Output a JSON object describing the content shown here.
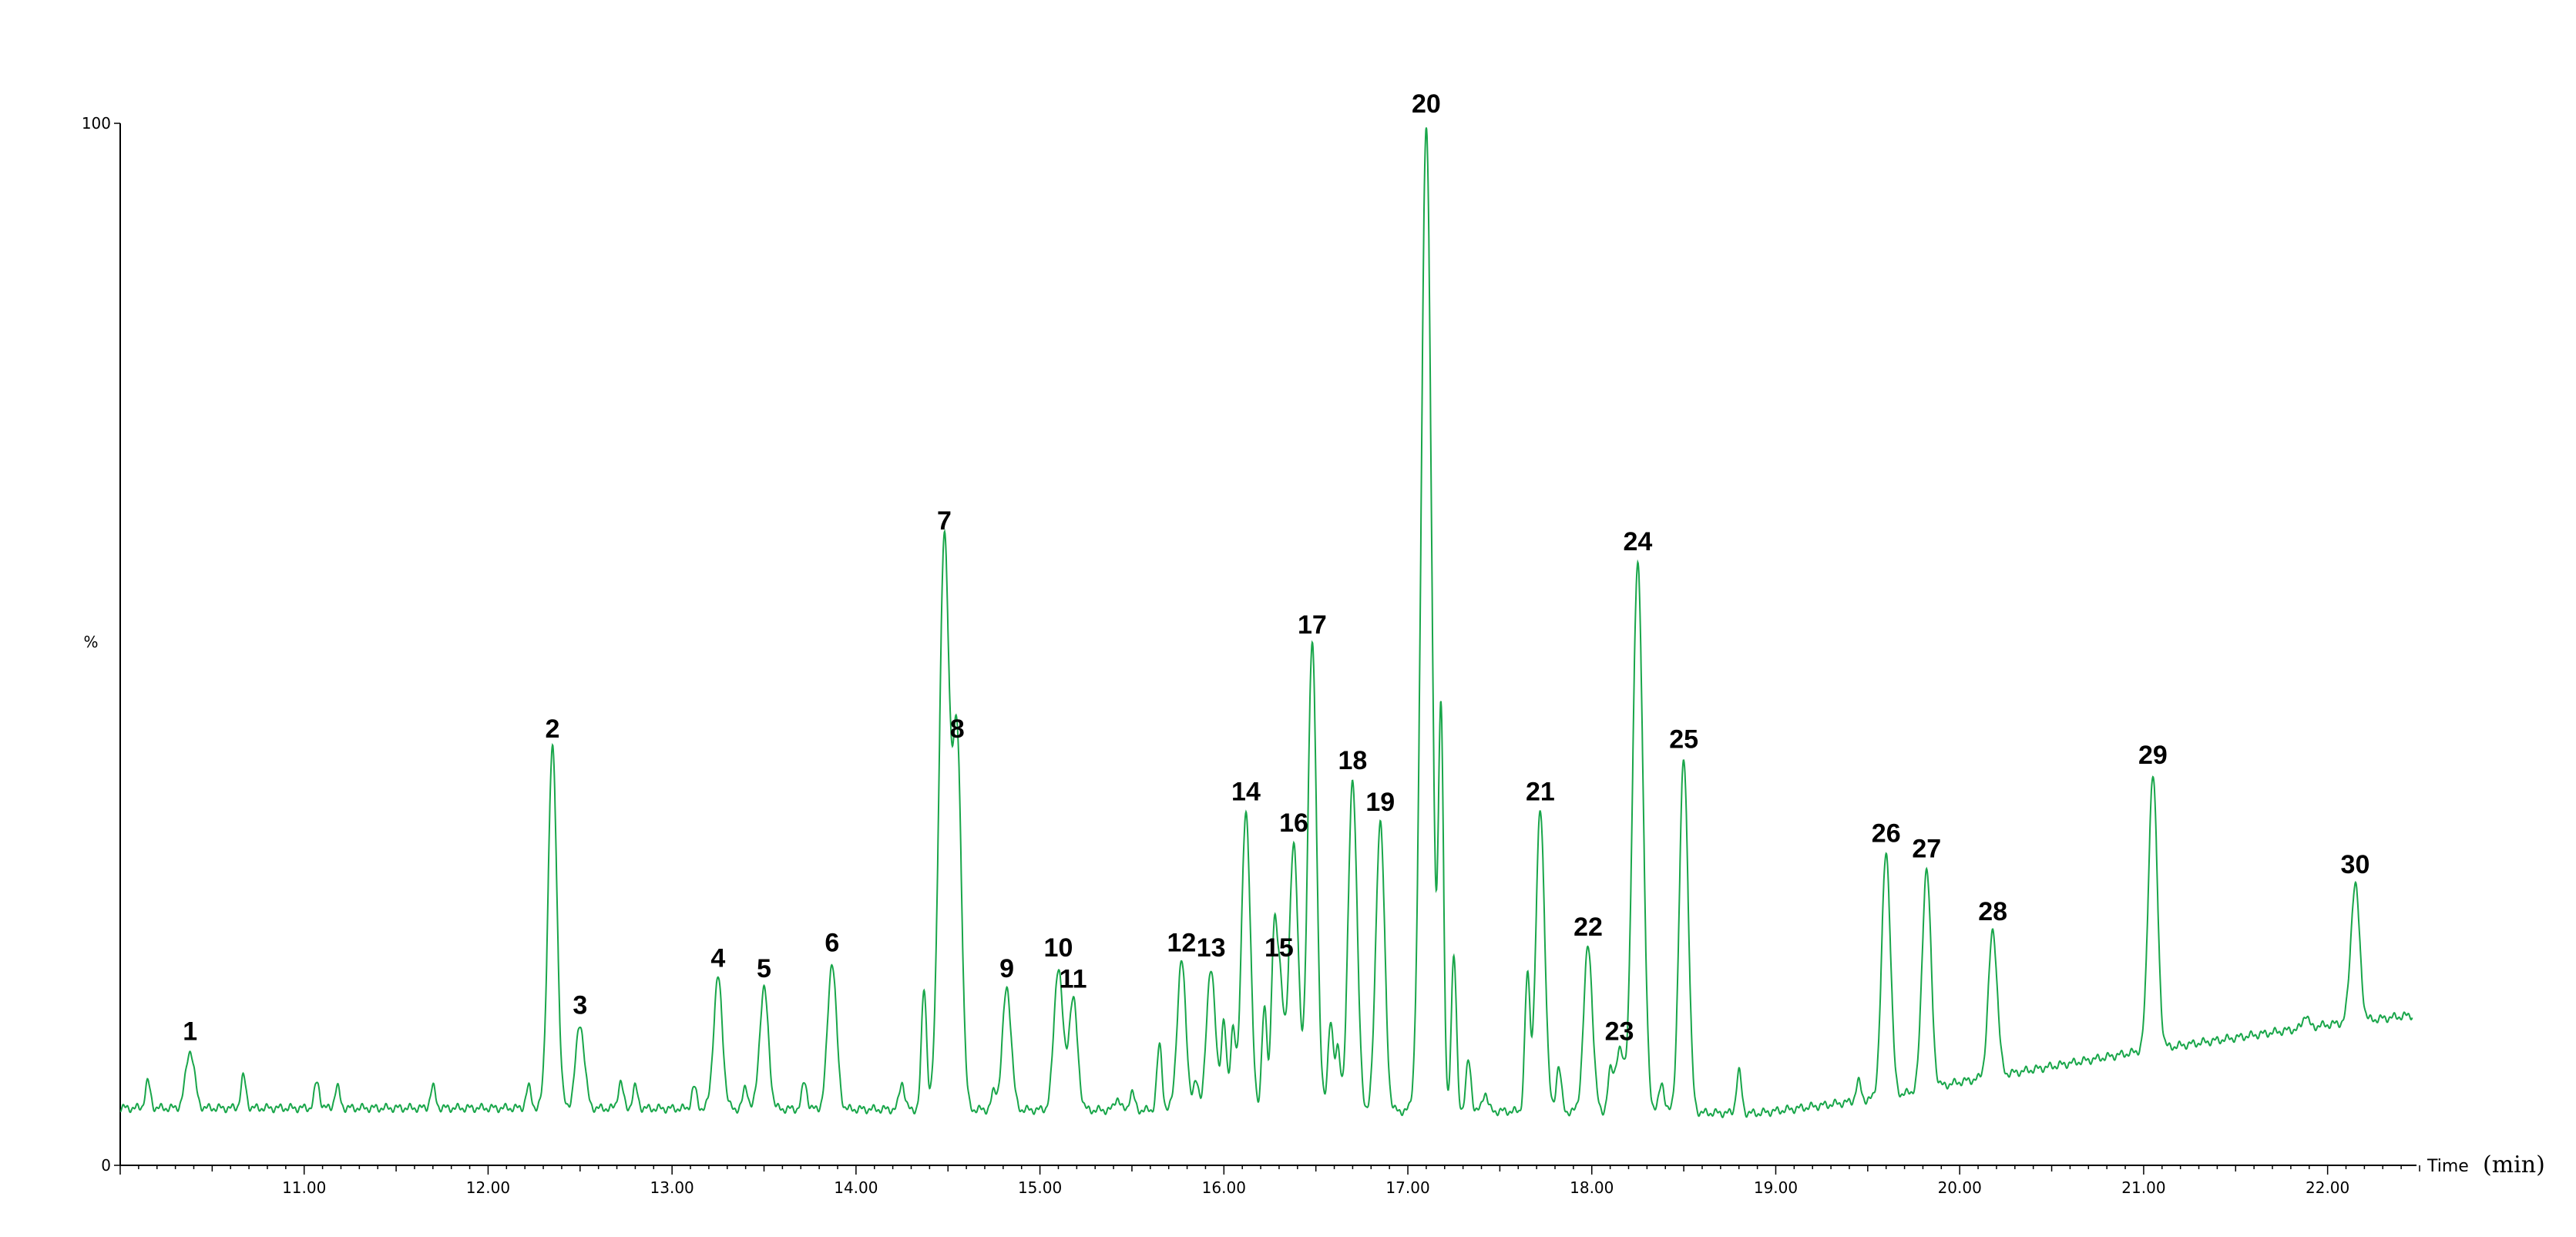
{
  "chart_data": {
    "type": "line",
    "xlabel": "Time",
    "xlabel_unit": "(min)",
    "ylabel": "%",
    "xlim": [
      10.0,
      22.5
    ],
    "ylim": [
      0,
      100
    ],
    "x_ticks": [
      11.0,
      12.0,
      13.0,
      14.0,
      15.0,
      16.0,
      17.0,
      18.0,
      19.0,
      20.0,
      21.0,
      22.0
    ],
    "x_tick_labels": [
      "11.00",
      "12.00",
      "13.00",
      "14.00",
      "15.00",
      "16.00",
      "17.00",
      "18.00",
      "19.00",
      "20.00",
      "21.00",
      "22.00"
    ],
    "y_ticks": [
      0,
      100
    ],
    "y_tick_labels": [
      "0",
      "100"
    ],
    "grid": false,
    "line_color": "#19a64a",
    "baseline": [
      [
        10.0,
        5.5
      ],
      [
        12.2,
        5.5
      ],
      [
        15.5,
        5.3
      ],
      [
        17.5,
        5.2
      ],
      [
        18.9,
        5.0
      ],
      [
        19.6,
        6.5
      ],
      [
        20.0,
        8.0
      ],
      [
        21.0,
        11.0
      ],
      [
        22.0,
        13.5
      ],
      [
        22.5,
        14.5
      ]
    ],
    "peaks": [
      {
        "label": "1",
        "x": 10.38,
        "y": 11.0
      },
      {
        "label": "2",
        "x": 12.35,
        "y": 40.0
      },
      {
        "label": "3",
        "x": 12.5,
        "y": 13.5
      },
      {
        "label": "4",
        "x": 13.25,
        "y": 18.0
      },
      {
        "label": "5",
        "x": 13.5,
        "y": 17.0
      },
      {
        "label": "6",
        "x": 13.87,
        "y": 19.5
      },
      {
        "label": "7",
        "x": 14.48,
        "y": 60.0
      },
      {
        "label": "8",
        "x": 14.55,
        "y": 40.0
      },
      {
        "label": "9",
        "x": 14.82,
        "y": 17.0
      },
      {
        "label": "10",
        "x": 15.1,
        "y": 19.0
      },
      {
        "label": "11",
        "x": 15.18,
        "y": 16.0
      },
      {
        "label": "12",
        "x": 15.77,
        "y": 19.5
      },
      {
        "label": "13",
        "x": 15.93,
        "y": 19.0
      },
      {
        "label": "14",
        "x": 16.12,
        "y": 34.0
      },
      {
        "label": "15",
        "x": 16.3,
        "y": 19.0
      },
      {
        "label": "16",
        "x": 16.38,
        "y": 31.0
      },
      {
        "label": "17",
        "x": 16.48,
        "y": 50.0
      },
      {
        "label": "18",
        "x": 16.7,
        "y": 37.0
      },
      {
        "label": "19",
        "x": 16.85,
        "y": 33.0
      },
      {
        "label": "20",
        "x": 17.1,
        "y": 100.0
      },
      {
        "label": "21",
        "x": 17.72,
        "y": 34.0
      },
      {
        "label": "22",
        "x": 17.98,
        "y": 21.0
      },
      {
        "label": "23",
        "x": 18.15,
        "y": 11.0
      },
      {
        "label": "24",
        "x": 18.25,
        "y": 58.0
      },
      {
        "label": "25",
        "x": 18.5,
        "y": 39.0
      },
      {
        "label": "26",
        "x": 19.6,
        "y": 30.0
      },
      {
        "label": "27",
        "x": 19.82,
        "y": 28.5
      },
      {
        "label": "28",
        "x": 20.18,
        "y": 22.5
      },
      {
        "label": "29",
        "x": 21.05,
        "y": 37.5
      },
      {
        "label": "30",
        "x": 22.15,
        "y": 27.0
      }
    ],
    "minor_peaks": [
      {
        "x": 10.15,
        "y": 8.0
      },
      {
        "x": 10.67,
        "y": 8.5
      },
      {
        "x": 11.07,
        "y": 8.0
      },
      {
        "x": 11.18,
        "y": 7.5
      },
      {
        "x": 11.7,
        "y": 7.5
      },
      {
        "x": 12.22,
        "y": 7.5
      },
      {
        "x": 12.72,
        "y": 8.0
      },
      {
        "x": 12.8,
        "y": 7.5
      },
      {
        "x": 13.12,
        "y": 7.5
      },
      {
        "x": 13.4,
        "y": 7.5
      },
      {
        "x": 13.72,
        "y": 8.0
      },
      {
        "x": 14.25,
        "y": 8.0
      },
      {
        "x": 14.37,
        "y": 17.0
      },
      {
        "x": 14.75,
        "y": 7.0
      },
      {
        "x": 15.42,
        "y": 6.5
      },
      {
        "x": 15.5,
        "y": 7.0
      },
      {
        "x": 15.65,
        "y": 11.5
      },
      {
        "x": 15.85,
        "y": 8.0
      },
      {
        "x": 16.0,
        "y": 14.0
      },
      {
        "x": 16.05,
        "y": 13.0
      },
      {
        "x": 16.22,
        "y": 15.0
      },
      {
        "x": 16.27,
        "y": 16.5
      },
      {
        "x": 16.58,
        "y": 14.0
      },
      {
        "x": 16.62,
        "y": 11.0
      },
      {
        "x": 17.18,
        "y": 43.0
      },
      {
        "x": 17.25,
        "y": 20.0
      },
      {
        "x": 17.33,
        "y": 10.0
      },
      {
        "x": 17.42,
        "y": 7.0
      },
      {
        "x": 17.65,
        "y": 18.0
      },
      {
        "x": 17.82,
        "y": 9.5
      },
      {
        "x": 18.1,
        "y": 8.5
      },
      {
        "x": 18.38,
        "y": 8.0
      },
      {
        "x": 18.8,
        "y": 9.0
      },
      {
        "x": 19.45,
        "y": 8.0
      },
      {
        "x": 21.88,
        "y": 14.5
      }
    ]
  }
}
